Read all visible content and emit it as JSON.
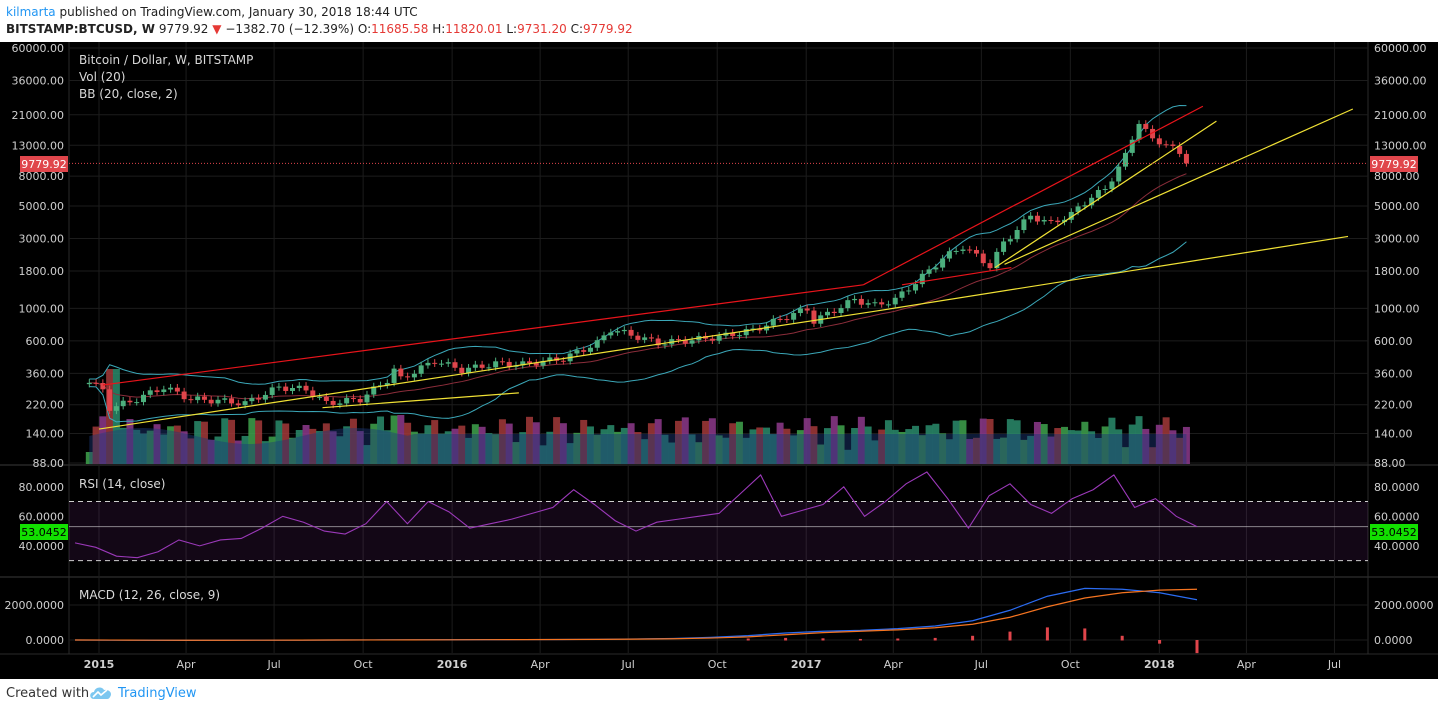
{
  "header": {
    "author": "kilmarta",
    "published_text": " published on TradingView.com, January 30, 2018 18:44 UTC",
    "symbol": "BITSTAMP:BTCUSD, W",
    "last": "9779.92",
    "change_arrow": "▼",
    "change": "−1382.70 (−12.39%)",
    "o_label": "O:",
    "o_value": "11685.58",
    "h_label": "H:",
    "h_value": "11820.01",
    "l_label": "L:",
    "l_value": "9731.20",
    "c_label": "C:",
    "c_value": "9779.92"
  },
  "legend": {
    "title": "Bitcoin / Dollar, W, BITSTAMP",
    "vol": "Vol (20)",
    "bb": "BB (20, close, 2)",
    "rsi": "RSI (14, close)",
    "macd": "MACD (12, 26, close, 9)"
  },
  "footer": {
    "created_with": "Created with",
    "brand": "TradingView"
  },
  "colors": {
    "background": "#000000",
    "grid": "#1c1c1c",
    "bull_candle": "#4caf7d",
    "bear_candle": "#e0454b",
    "bb_line": "#3ba7b8",
    "bb_basis": "#8b2d3a",
    "trend_red": "#e8141b",
    "trend_yellow": "#f0e135",
    "rsi_line": "#9b39b9",
    "macd_line": "#2b6cf2",
    "signal_line": "#f57420",
    "price_badge": "#e0454b",
    "rsi_badge": "#12e000"
  },
  "chart_data": [
    {
      "type": "candlestick",
      "title": "Bitcoin / Dollar, W, BITSTAMP",
      "scale": "log",
      "last_price": 9779.92,
      "last_price_label": "9779.92",
      "y_ticks": [
        88,
        140,
        220,
        360,
        600,
        1000,
        1800,
        3000,
        5000,
        8000,
        13000,
        21000,
        36000,
        60000
      ],
      "y_tick_labels": [
        "88.00",
        "140.00",
        "220.00",
        "360.00",
        "600.00",
        "1000.00",
        "1800.00",
        "3000.00",
        "5000.00",
        "8000.00",
        "13000.00",
        "21000.00",
        "36000.00",
        "60000.00"
      ],
      "x_labels": [
        "2015",
        "Apr",
        "Jul",
        "Oct",
        "2016",
        "Apr",
        "Jul",
        "Oct",
        "2017",
        "Apr",
        "Jul",
        "Oct",
        "2018",
        "Apr",
        "Jul"
      ],
      "x_label_bold": [
        "2015",
        "2016",
        "2017",
        "2018"
      ],
      "weekly_close_approx": [
        {
          "t": "2014-12-22",
          "close": 320
        },
        {
          "t": "2015-01-05",
          "close": 275
        },
        {
          "t": "2015-01-12",
          "close": 210
        },
        {
          "t": "2015-02-02",
          "close": 230
        },
        {
          "t": "2015-03-09",
          "close": 290
        },
        {
          "t": "2015-04-06",
          "close": 240
        },
        {
          "t": "2015-05-04",
          "close": 235
        },
        {
          "t": "2015-06-01",
          "close": 225
        },
        {
          "t": "2015-07-06",
          "close": 290
        },
        {
          "t": "2015-08-03",
          "close": 280
        },
        {
          "t": "2015-08-24",
          "close": 225
        },
        {
          "t": "2015-09-28",
          "close": 240
        },
        {
          "t": "2015-10-26",
          "close": 325
        },
        {
          "t": "2015-11-02",
          "close": 380
        },
        {
          "t": "2015-11-09",
          "close": 330
        },
        {
          "t": "2015-12-14",
          "close": 440
        },
        {
          "t": "2016-01-11",
          "close": 380
        },
        {
          "t": "2016-02-15",
          "close": 420
        },
        {
          "t": "2016-03-14",
          "close": 415
        },
        {
          "t": "2016-04-25",
          "close": 455
        },
        {
          "t": "2016-05-30",
          "close": 580
        },
        {
          "t": "2016-06-13",
          "close": 720
        },
        {
          "t": "2016-07-04",
          "close": 660
        },
        {
          "t": "2016-08-01",
          "close": 580
        },
        {
          "t": "2016-09-05",
          "close": 610
        },
        {
          "t": "2016-10-03",
          "close": 640
        },
        {
          "t": "2016-11-07",
          "close": 710
        },
        {
          "t": "2016-12-19",
          "close": 920
        },
        {
          "t": "2017-01-02",
          "close": 990
        },
        {
          "t": "2017-01-09",
          "close": 820
        },
        {
          "t": "2017-02-20",
          "close": 1150
        },
        {
          "t": "2017-03-13",
          "close": 1050
        },
        {
          "t": "2017-04-03",
          "close": 1150
        },
        {
          "t": "2017-05-01",
          "close": 1650
        },
        {
          "t": "2017-05-22",
          "close": 2200
        },
        {
          "t": "2017-06-12",
          "close": 2650
        },
        {
          "t": "2017-07-10",
          "close": 1950
        },
        {
          "t": "2017-07-24",
          "close": 2800
        },
        {
          "t": "2017-08-21",
          "close": 4300
        },
        {
          "t": "2017-09-11",
          "close": 3800
        },
        {
          "t": "2017-10-02",
          "close": 4400
        },
        {
          "t": "2017-10-23",
          "close": 5800
        },
        {
          "t": "2017-11-06",
          "close": 6500
        },
        {
          "t": "2017-11-27",
          "close": 11000
        },
        {
          "t": "2017-12-11",
          "close": 19000
        },
        {
          "t": "2017-12-25",
          "close": 14000
        },
        {
          "t": "2018-01-08",
          "close": 13500
        },
        {
          "t": "2018-01-22",
          "close": 11200
        },
        {
          "t": "2018-01-29",
          "close": 9780
        }
      ]
    },
    {
      "type": "line",
      "title": "RSI (14, close)",
      "last_value_label": "53.0452",
      "y_ticks": [
        40,
        60,
        80
      ],
      "y_tick_labels": [
        "40.0000",
        "60.0000",
        "80.0000"
      ],
      "bands": [
        30,
        70
      ],
      "series": [
        {
          "values_approx": [
            42,
            39,
            33,
            32,
            36,
            44,
            40,
            44,
            45,
            52,
            60,
            56,
            50,
            48,
            55,
            70,
            55,
            70,
            63,
            52,
            55,
            58,
            62,
            66,
            78,
            68,
            57,
            50,
            56,
            58,
            60,
            62,
            75,
            88,
            60,
            64,
            68,
            80,
            60,
            70,
            82,
            90,
            72,
            52,
            74,
            82,
            68,
            62,
            72,
            78,
            88,
            66,
            72,
            60,
            53
          ]
        }
      ]
    },
    {
      "type": "line",
      "title": "MACD (12, 26, close, 9)",
      "y_ticks": [
        0,
        2000
      ],
      "y_tick_labels": [
        "0.0000",
        "2000.0000"
      ],
      "series": [
        {
          "name": "MACD",
          "values_approx": [
            0,
            -5,
            -15,
            -20,
            -15,
            -10,
            -5,
            0,
            5,
            10,
            15,
            20,
            25,
            30,
            40,
            60,
            90,
            150,
            250,
            400,
            500,
            550,
            650,
            800,
            1100,
            1700,
            2500,
            2950,
            2900,
            2700,
            2300
          ]
        },
        {
          "name": "Signal",
          "values_approx": [
            0,
            -3,
            -10,
            -15,
            -14,
            -11,
            -7,
            -2,
            3,
            8,
            12,
            18,
            22,
            28,
            35,
            50,
            70,
            110,
            180,
            300,
            420,
            500,
            580,
            700,
            900,
            1300,
            1900,
            2400,
            2700,
            2850,
            2900
          ]
        }
      ]
    }
  ]
}
